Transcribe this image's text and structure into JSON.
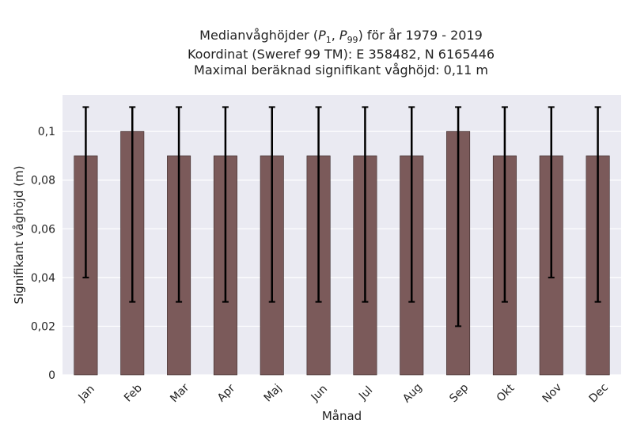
{
  "chart_data": {
    "type": "bar",
    "title_lines": [
      "Medianvåghöjder (P1, P99) för år 1979 - 2019",
      "Koordinat (Sweref 99 TM): E 358482, N 6165446",
      "Maximal beräknad signifikant våghöjd: 0,11 m"
    ],
    "title_parts": {
      "prefix": "Medianvåghöjder (",
      "p1_base": "P",
      "p1_sub": "1",
      "sep": ", ",
      "p99_base": "P",
      "p99_sub": "99",
      "suffix": ") för år 1979 - 2019"
    },
    "xlabel": "Månad",
    "ylabel": "Signifikant våghöjd (m)",
    "categories": [
      "Jan",
      "Feb",
      "Mar",
      "Apr",
      "Maj",
      "Jun",
      "Jul",
      "Aug",
      "Sep",
      "Okt",
      "Nov",
      "Dec"
    ],
    "values": [
      0.09,
      0.1,
      0.09,
      0.09,
      0.09,
      0.09,
      0.09,
      0.09,
      0.1,
      0.09,
      0.09,
      0.09
    ],
    "error_low": [
      0.04,
      0.03,
      0.03,
      0.03,
      0.03,
      0.03,
      0.03,
      0.03,
      0.02,
      0.03,
      0.04,
      0.03
    ],
    "error_high": [
      0.11,
      0.11,
      0.11,
      0.11,
      0.11,
      0.11,
      0.11,
      0.11,
      0.11,
      0.11,
      0.11,
      0.11
    ],
    "ylim": [
      0,
      0.115
    ],
    "yticks": [
      0,
      0.02,
      0.04,
      0.06,
      0.08,
      0.1
    ],
    "ytick_labels": [
      "0",
      "0,02",
      "0,04",
      "0,06",
      "0,08",
      "0,1"
    ],
    "grid": true,
    "colors": {
      "bar": "#7b5a5a",
      "bar_edge": "#3a2a2a",
      "error_bar": "#000000",
      "plot_bg": "#eaeaf2",
      "grid": "#ffffff"
    }
  }
}
